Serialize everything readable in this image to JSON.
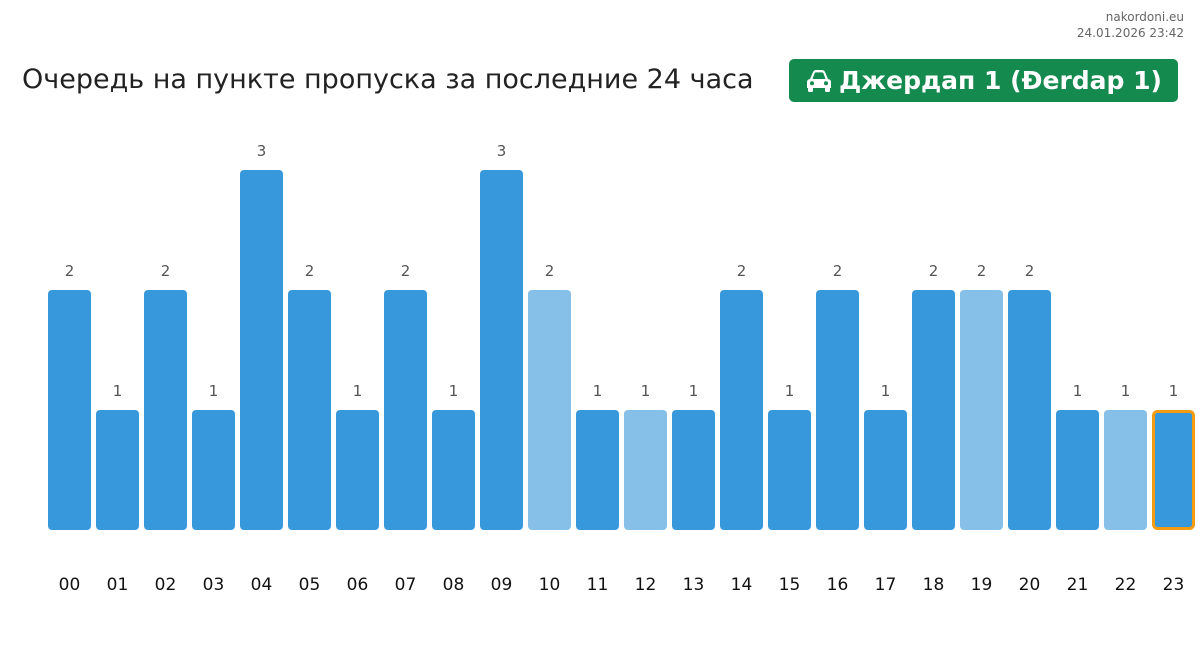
{
  "site": {
    "name": "nakordoni.eu",
    "timestamp": "24.01.2026 23:42"
  },
  "title": "Очередь на пункте пропуска за последние 24 часа",
  "badge": {
    "label": "Джердап 1 (Đerdap 1)",
    "icon": "car-icon"
  },
  "colors": {
    "bar": "#3799dc",
    "bar_light": "#86c0e8",
    "highlight_border": "#f39c12",
    "badge_bg": "#158a4f"
  },
  "chart_data": {
    "type": "bar",
    "categories": [
      "00",
      "01",
      "02",
      "03",
      "04",
      "05",
      "06",
      "07",
      "08",
      "09",
      "10",
      "11",
      "12",
      "13",
      "14",
      "15",
      "16",
      "17",
      "18",
      "19",
      "20",
      "21",
      "22",
      "23"
    ],
    "values": [
      2,
      1,
      2,
      1,
      3,
      2,
      1,
      2,
      1,
      3,
      2,
      1,
      1,
      1,
      2,
      1,
      2,
      1,
      2,
      2,
      2,
      1,
      1,
      1
    ],
    "light_bars": [
      "10",
      "12",
      "19",
      "22"
    ],
    "highlighted": "23",
    "ylim": [
      0,
      3
    ],
    "grid": false,
    "legend": "none"
  }
}
